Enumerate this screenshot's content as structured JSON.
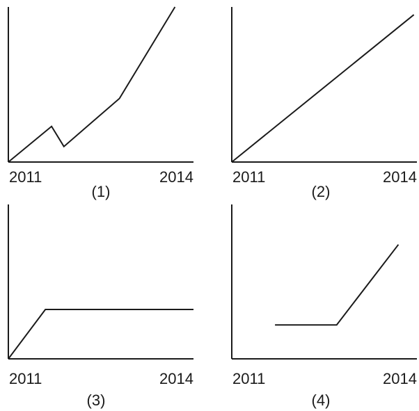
{
  "chart_data": [
    {
      "type": "line",
      "caption": "(1)",
      "x_tick_labels": [
        "2011",
        "2014"
      ],
      "xlim": [
        2011,
        2014
      ],
      "ylim": [
        0,
        10
      ],
      "series": [
        {
          "x": [
            2011,
            2011.7,
            2011.9,
            2012.8,
            2013.7
          ],
          "y": [
            0,
            2.3,
            1.0,
            4.1,
            10.0
          ]
        }
      ]
    },
    {
      "type": "line",
      "caption": "(2)",
      "x_tick_labels": [
        "2011",
        "2014"
      ],
      "xlim": [
        2011,
        2014
      ],
      "ylim": [
        0,
        10
      ],
      "series": [
        {
          "x": [
            2011,
            2013.95
          ],
          "y": [
            0,
            9.5
          ]
        }
      ]
    },
    {
      "type": "line",
      "caption": "(3)",
      "x_tick_labels": [
        "2011",
        "2014"
      ],
      "xlim": [
        2011,
        2014
      ],
      "ylim": [
        0,
        10
      ],
      "series": [
        {
          "x": [
            2011,
            2011.6,
            2014.0
          ],
          "y": [
            0,
            3.2,
            3.2
          ]
        }
      ]
    },
    {
      "type": "line",
      "caption": "(4)",
      "x_tick_labels": [
        "2011",
        "2014"
      ],
      "xlim": [
        2011,
        2014
      ],
      "ylim": [
        0,
        10
      ],
      "series": [
        {
          "x": [
            2011.7,
            2012.7,
            2013.7
          ],
          "y": [
            2.2,
            2.2,
            7.4
          ]
        }
      ]
    }
  ]
}
